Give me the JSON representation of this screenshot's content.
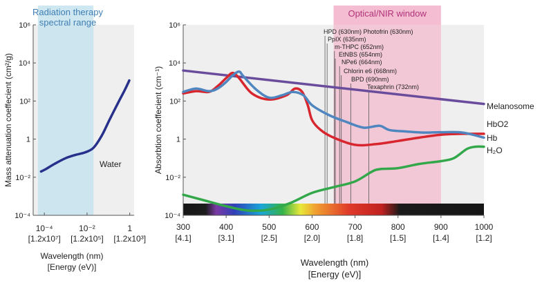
{
  "chart_data": [
    {
      "type": "line",
      "title": "",
      "region_label_lines": [
        "Radiation therapy",
        "spectral range"
      ],
      "ylabel": "Mass attenuation coeffecient (cm²/g)",
      "xlabel_lines": [
        "Wavelength (nm)",
        "[Energy (eV)]"
      ],
      "x_scale": "log",
      "y_scale": "log",
      "xlim_nm": [
        3e-05,
        1.6
      ],
      "ylim": [
        0.0001,
        1000000
      ],
      "x_ticks": [
        {
          "value": 0.0001,
          "label": "10⁻⁴",
          "energy": "[1.2x10⁷]"
        },
        {
          "value": 0.01,
          "label": "10⁻²",
          "energy": "[1.2x10⁵]"
        },
        {
          "value": 1,
          "label": "1",
          "energy": "[1.2x10³]"
        }
      ],
      "y_ticks": [
        {
          "value": 0.0001,
          "label": "10⁻⁴"
        },
        {
          "value": 0.01,
          "label": "10⁻²"
        },
        {
          "value": 1,
          "label": "1"
        },
        {
          "value": 100,
          "label": "10²"
        },
        {
          "value": 10000,
          "label": "10⁴"
        },
        {
          "value": 1000000,
          "label": "10⁶"
        }
      ],
      "highlight_range_nm": [
        5e-05,
        0.02
      ],
      "series": [
        {
          "name": "Water",
          "color": "#27308a",
          "x": [
            7e-05,
            0.00012,
            0.0003,
            0.001,
            0.003,
            0.008,
            0.02,
            0.05,
            0.12,
            0.3,
            0.6,
            0.95
          ],
          "y": [
            0.02,
            0.027,
            0.05,
            0.1,
            0.15,
            0.2,
            0.35,
            1.6,
            12,
            90,
            400,
            1200
          ]
        }
      ]
    },
    {
      "type": "line",
      "title": "",
      "window_label": "Optical/NIR window",
      "ylabel": "Absorbtion coeffecient (cm⁻¹)",
      "xlabel_lines": [
        "Wavelength (nm)",
        "[Energy (eV)]"
      ],
      "x_scale": "linear",
      "y_scale": "log",
      "xlim": [
        300,
        1000
      ],
      "ylim": [
        0.0001,
        1000000
      ],
      "window_range_nm": [
        650,
        900
      ],
      "x_ticks": [
        {
          "value": 300,
          "label": "300",
          "energy": "[4.1]"
        },
        {
          "value": 400,
          "label": "400",
          "energy": "[3.1]"
        },
        {
          "value": 500,
          "label": "500",
          "energy": "[2.5]"
        },
        {
          "value": 600,
          "label": "600",
          "energy": "[2.0]"
        },
        {
          "value": 700,
          "label": "700",
          "energy": "[1.8]"
        },
        {
          "value": 800,
          "label": "800",
          "energy": "[1.5]"
        },
        {
          "value": 900,
          "label": "900",
          "energy": "[1.4]"
        },
        {
          "value": 1000,
          "label": "1000",
          "energy": "[1.2]"
        }
      ],
      "y_ticks": [
        {
          "value": 0.0001,
          "label": "10⁻⁴"
        },
        {
          "value": 0.01,
          "label": "10⁻²"
        },
        {
          "value": 1,
          "label": "1"
        },
        {
          "value": 100,
          "label": "10²"
        },
        {
          "value": 10000,
          "label": "10⁴"
        },
        {
          "value": 1000000,
          "label": "10⁶"
        }
      ],
      "photosensitizers": [
        {
          "label": "HPD (630nm) Photofrin (630nm)",
          "nm": 630
        },
        {
          "label": "PpIX (635nm)",
          "nm": 635
        },
        {
          "label": "m-THPC (652nm)",
          "nm": 652
        },
        {
          "label": "EtNBS (654nm)",
          "nm": 654
        },
        {
          "label": "NPe6 (664nm)",
          "nm": 664
        },
        {
          "label": "Chlorin e6 (668nm)",
          "nm": 668
        },
        {
          "label": "BPD (690nm)",
          "nm": 690
        },
        {
          "label": "Texaphrin (732nm)",
          "nm": 732
        }
      ],
      "series": [
        {
          "name": "Melanosome",
          "color": "#6a4c9c",
          "x": [
            300,
            1000
          ],
          "y": [
            4000,
            70
          ]
        },
        {
          "name": "HbO2",
          "color": "#d8262e",
          "x": [
            300,
            330,
            360,
            380,
            400,
            415,
            430,
            460,
            500,
            540,
            560,
            577,
            590,
            600,
            620,
            650,
            700,
            750,
            800,
            850,
            900,
            950,
            1000
          ],
          "y": [
            250,
            330,
            300,
            600,
            1600,
            3000,
            1600,
            250,
            120,
            200,
            450,
            300,
            60,
            10,
            3,
            1.2,
            0.5,
            0.55,
            0.8,
            1.2,
            1.7,
            1.9,
            1.9
          ]
        },
        {
          "name": "Hb",
          "color": "#4f86c0",
          "x": [
            300,
            330,
            360,
            380,
            400,
            415,
            430,
            440,
            470,
            500,
            530,
            555,
            580,
            600,
            640,
            680,
            720,
            757,
            780,
            820,
            860,
            900,
            950,
            1000
          ],
          "y": [
            300,
            450,
            330,
            450,
            1000,
            2200,
            3500,
            2000,
            400,
            150,
            200,
            300,
            200,
            60,
            18,
            8,
            4,
            5,
            3,
            2.5,
            2.2,
            2.3,
            2.2,
            1.2
          ]
        },
        {
          "name": "H₂O",
          "color": "#33a84a",
          "x": [
            300,
            350,
            400,
            450,
            500,
            550,
            600,
            650,
            700,
            740,
            760,
            800,
            850,
            900,
            930,
            960,
            980,
            1000
          ],
          "y": [
            0.0012,
            0.0006,
            0.0003,
            0.00018,
            0.0002,
            0.00045,
            0.0015,
            0.003,
            0.006,
            0.02,
            0.027,
            0.03,
            0.05,
            0.07,
            0.1,
            0.3,
            0.4,
            0.4
          ]
        }
      ]
    }
  ]
}
